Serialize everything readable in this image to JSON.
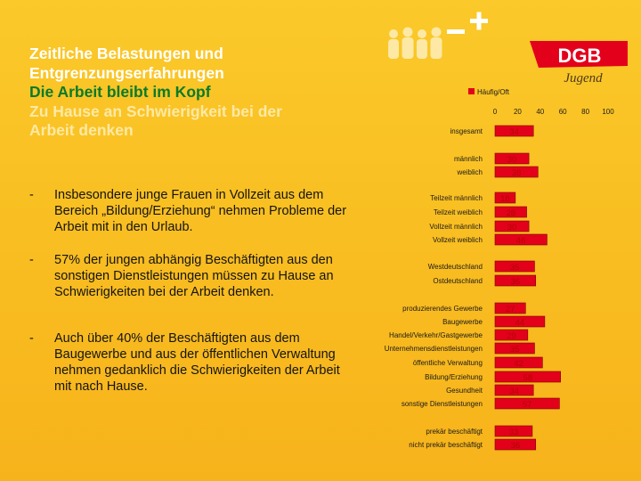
{
  "title": {
    "line1": "Zeitliche Belastungen und",
    "line2": "Entgrenzungserfahrungen",
    "line3": "Die Arbeit bleibt im Kopf",
    "line4": "Zu Hause an Schwierigkeit bei der",
    "line5": "Arbeit denken"
  },
  "bullets": [
    {
      "dash": "-",
      "text": "Insbesondere junge Frauen in Vollzeit aus dem Bereich „Bildung/Erziehung“ nehmen Probleme der Arbeit mit in den Urlaub."
    },
    {
      "dash": "-",
      "text": "57% der jungen abhängig Beschäftigten aus den sonstigen Dienstleistungen müssen zu Hause an Schwierigkeiten bei der Arbeit denken."
    },
    {
      "dash": "-",
      "text": "Auch über 40% der Beschäftigten aus dem Baugewerbe und aus der öffentlichen Verwaltung nehmen gedanklich die Schwierigkeiten der Arbeit mit nach Hause."
    }
  ],
  "logo": {
    "brand": "DGB",
    "sub": "Jugend"
  },
  "colors": {
    "bar": "#e3001b",
    "bar_border": "#7a0000",
    "value_text": "#b30000",
    "green": "#0a7a2a",
    "white": "#ffffff",
    "red": "#e3001b"
  },
  "chart_data": {
    "type": "bar",
    "orientation": "horizontal",
    "title": "",
    "legend": {
      "label": "Häufig/Oft",
      "position": "top"
    },
    "x_ticks": [
      "0",
      "20",
      "40",
      "60",
      "80",
      "100"
    ],
    "xlim": [
      0,
      100
    ],
    "categories": [
      "insgesamt",
      "männlich",
      "weiblich",
      "Teilzeit männlich",
      "Teilzeit weiblich",
      "Vollzeit männlich",
      "Vollzeit weiblich",
      "Westdeutschland",
      "Ostdeutschland",
      "produzierendes Gewerbe",
      "Baugewerbe",
      "Handel/Verkehr/Gastgewerbe",
      "Unternehmensdienstleistungen",
      "öffentliche Verwaltung",
      "Bildung/Erziehung",
      "Gesundheit",
      "sonstige Dienstleistungen",
      "prekär beschäftigt",
      "nicht prekär beschäftigt"
    ],
    "values": [
      34,
      30,
      38,
      18,
      28,
      30,
      46,
      35,
      36,
      27,
      44,
      29,
      35,
      42,
      58,
      34,
      57,
      33,
      36
    ],
    "groups": [
      [
        "insgesamt"
      ],
      [
        "männlich",
        "weiblich"
      ],
      [
        "Teilzeit männlich",
        "Teilzeit weiblich",
        "Vollzeit männlich",
        "Vollzeit weiblich"
      ],
      [
        "Westdeutschland",
        "Ostdeutschland"
      ],
      [
        "produzierendes Gewerbe",
        "Baugewerbe",
        "Handel/Verkehr/Gastgewerbe",
        "Unternehmensdienstleistungen",
        "öffentliche Verwaltung",
        "Bildung/Erziehung",
        "Gesundheit",
        "sonstige Dienstleistungen"
      ],
      [
        "prekär beschäftigt",
        "nicht prekär beschäftigt"
      ]
    ]
  }
}
